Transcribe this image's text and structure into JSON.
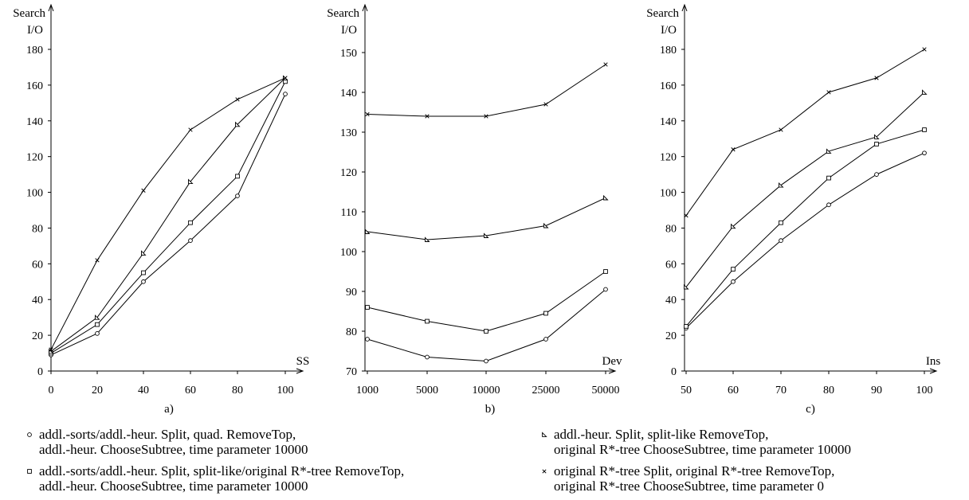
{
  "chart_data": [
    {
      "type": "line",
      "panel_label": "a)",
      "ylabel_line1": "Search",
      "ylabel_line2": "I/O",
      "xlabel": "SS",
      "x": [
        0,
        20,
        40,
        60,
        80,
        100
      ],
      "x_tick_labels": [
        "0",
        "20",
        "40",
        "60",
        "80",
        "100"
      ],
      "y_ticks": [
        0,
        20,
        40,
        60,
        80,
        100,
        120,
        140,
        160,
        180
      ],
      "ylim": [
        0,
        180
      ],
      "series": [
        {
          "marker": "circle",
          "values": [
            9,
            21,
            50,
            73,
            98,
            155
          ]
        },
        {
          "marker": "square",
          "values": [
            10,
            26,
            55,
            83,
            109,
            162
          ]
        },
        {
          "marker": "triangle",
          "values": [
            11,
            30,
            66,
            106,
            138,
            164
          ]
        },
        {
          "marker": "cross",
          "values": [
            12,
            62,
            101,
            135,
            152,
            164
          ]
        }
      ]
    },
    {
      "type": "line",
      "panel_label": "b)",
      "ylabel_line1": "Search",
      "ylabel_line2": "I/O",
      "xlabel": "Dev",
      "x": [
        1000,
        5000,
        10000,
        25000,
        50000
      ],
      "x_tick_labels": [
        "1000",
        "5000",
        "10000",
        "25000",
        "50000"
      ],
      "y_ticks": [
        70,
        80,
        90,
        100,
        110,
        120,
        130,
        140,
        150
      ],
      "ylim": [
        70,
        150
      ],
      "series": [
        {
          "marker": "circle",
          "values": [
            78,
            73.5,
            72.5,
            78,
            90.5
          ]
        },
        {
          "marker": "square",
          "values": [
            86,
            82.5,
            80,
            84.5,
            95
          ]
        },
        {
          "marker": "triangle",
          "values": [
            105,
            103,
            104,
            106.5,
            113.5
          ]
        },
        {
          "marker": "cross",
          "values": [
            134.5,
            134,
            134,
            137,
            147
          ]
        }
      ]
    },
    {
      "type": "line",
      "panel_label": "c)",
      "ylabel_line1": "Search",
      "ylabel_line2": "I/O",
      "xlabel": "Ins",
      "x": [
        50,
        60,
        70,
        80,
        90,
        100
      ],
      "x_tick_labels": [
        "50",
        "60",
        "70",
        "80",
        "90",
        "100"
      ],
      "y_ticks": [
        0,
        20,
        40,
        60,
        80,
        100,
        120,
        140,
        160,
        180
      ],
      "ylim": [
        0,
        180
      ],
      "series": [
        {
          "marker": "circle",
          "values": [
            24,
            50,
            73,
            93,
            110,
            122
          ]
        },
        {
          "marker": "square",
          "values": [
            25,
            57,
            83,
            108,
            127,
            135
          ]
        },
        {
          "marker": "triangle",
          "values": [
            47,
            81,
            104,
            123,
            131,
            156
          ]
        },
        {
          "marker": "cross",
          "values": [
            87,
            124,
            135,
            156,
            164,
            180
          ]
        }
      ]
    }
  ],
  "legend": [
    {
      "marker": "circle",
      "line1": "addl.-sorts/addl.-heur. Split, quad. RemoveTop,",
      "line2": "addl.-heur. ChooseSubtree, time parameter 10000"
    },
    {
      "marker": "square",
      "line1": "addl.-sorts/addl.-heur. Split, split-like/original R*-tree RemoveTop,",
      "line2": "addl.-heur. ChooseSubtree, time parameter 10000"
    },
    {
      "marker": "triangle",
      "line1": "addl.-heur. Split, split-like RemoveTop,",
      "line2": "original R*-tree ChooseSubtree, time parameter 10000"
    },
    {
      "marker": "cross",
      "line1": "original R*-tree Split, original R*-tree RemoveTop,",
      "line2": "original R*-tree ChooseSubtree, time parameter 0"
    }
  ]
}
